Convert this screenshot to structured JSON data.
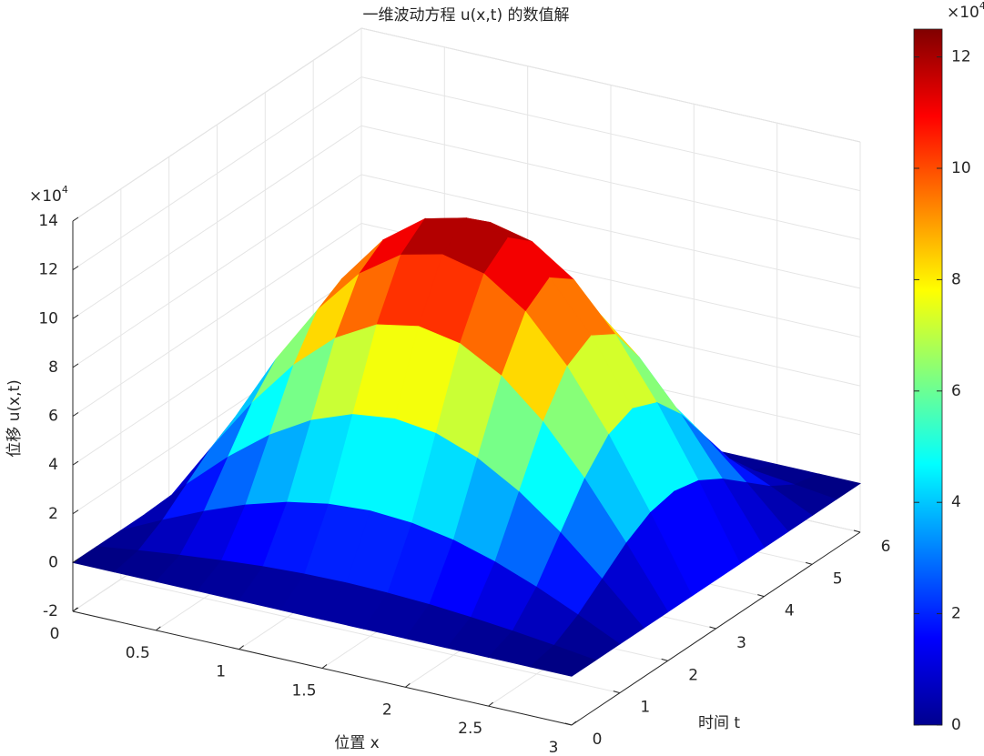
{
  "chart_data": {
    "type": "surface",
    "title": "一维波动方程 u(x,t) 的数值解",
    "xlabel": "位置 x",
    "ylabel": "时间 t",
    "zlabel": "位移 u(x,t)",
    "x": [
      0,
      0.25,
      0.5,
      0.75,
      1,
      1.25,
      1.5,
      1.75,
      2,
      2.25,
      2.5,
      2.75,
      3
    ],
    "y": [
      0,
      0.5,
      1,
      1.5,
      2,
      2.5,
      3,
      3.5,
      4,
      4.5,
      5,
      5.5,
      6
    ],
    "z": [
      [
        0,
        0,
        0,
        0,
        0,
        0,
        0,
        0,
        0,
        0,
        0,
        0,
        0
      ],
      [
        0,
        0.22,
        0.81,
        1.62,
        2.43,
        3.02,
        3.24,
        3.02,
        2.43,
        1.62,
        0.81,
        0.22,
        0
      ],
      [
        0,
        0.42,
        1.56,
        3.13,
        4.69,
        5.83,
        6.25,
        5.83,
        4.69,
        3.13,
        1.56,
        0.42,
        0
      ],
      [
        0,
        0.59,
        2.21,
        4.42,
        6.63,
        8.24,
        8.84,
        8.24,
        6.63,
        4.42,
        2.21,
        0.59,
        0
      ],
      [
        0,
        0.73,
        2.71,
        5.41,
        8.12,
        10.1,
        10.83,
        10.1,
        8.12,
        5.41,
        2.71,
        0.73,
        0
      ],
      [
        0,
        0.81,
        3.02,
        6.04,
        9.06,
        11.26,
        12.08,
        11.26,
        9.06,
        6.04,
        3.02,
        0.81,
        0
      ],
      [
        0,
        0.84,
        3.13,
        6.25,
        9.38,
        11.66,
        12.5,
        11.66,
        9.38,
        6.25,
        3.13,
        0.84,
        0
      ],
      [
        0,
        0.81,
        3.02,
        6.04,
        9.06,
        11.26,
        12.08,
        11.26,
        9.06,
        6.04,
        3.02,
        0.81,
        0
      ],
      [
        0,
        0.73,
        2.71,
        5.41,
        8.12,
        10.1,
        10.83,
        10.1,
        8.12,
        5.41,
        2.71,
        0.73,
        0
      ],
      [
        0,
        0.59,
        2.21,
        4.42,
        6.63,
        8.24,
        8.84,
        8.24,
        6.63,
        4.42,
        2.21,
        0.59,
        0
      ],
      [
        0,
        0.42,
        1.56,
        3.13,
        4.69,
        5.83,
        6.25,
        5.83,
        4.69,
        3.13,
        1.56,
        0.42,
        0
      ],
      [
        0,
        0.22,
        0.81,
        1.62,
        2.43,
        3.02,
        3.24,
        3.02,
        2.43,
        1.62,
        0.81,
        0.22,
        0
      ],
      [
        0,
        0,
        0,
        0,
        0,
        0,
        0,
        0,
        0,
        0,
        0,
        0,
        0
      ]
    ],
    "xlim": [
      0,
      3
    ],
    "ylim": [
      0,
      6
    ],
    "zlim": [
      -2,
      14
    ],
    "xticks": [
      0,
      0.5,
      1,
      1.5,
      2,
      2.5,
      3
    ],
    "yticks": [
      0,
      1,
      2,
      3,
      4,
      5,
      6
    ],
    "zticks": [
      -2,
      0,
      2,
      4,
      6,
      8,
      10,
      12,
      14
    ],
    "z_multiplier": "×10",
    "z_exponent": "4",
    "colormap": "jet",
    "grid": true,
    "colorbar": {
      "clim": [
        0,
        12.5
      ],
      "ticks": [
        0,
        2,
        4,
        6,
        8,
        10,
        12
      ],
      "multiplier": "×10",
      "exponent": "4"
    }
  }
}
